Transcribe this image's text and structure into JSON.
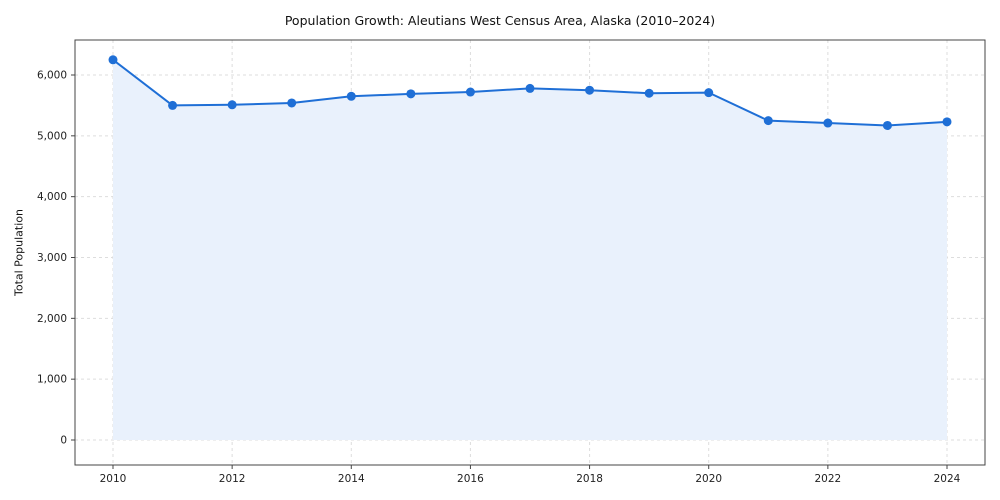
{
  "chart_data": {
    "type": "area",
    "title": "Population Growth: Aleutians West Census Area, Alaska (2010–2024)",
    "xlabel": "",
    "ylabel": "Total Population",
    "series_name": "Total Population",
    "x": [
      2010,
      2011,
      2012,
      2013,
      2014,
      2015,
      2016,
      2017,
      2018,
      2019,
      2020,
      2021,
      2022,
      2023,
      2024
    ],
    "values": [
      6250,
      5500,
      5510,
      5540,
      5650,
      5690,
      5720,
      5780,
      5750,
      5700,
      5710,
      5250,
      5210,
      5170,
      5230
    ],
    "x_ticks": [
      2010,
      2012,
      2014,
      2016,
      2018,
      2020,
      2022,
      2024
    ],
    "x_tick_labels": [
      "2010",
      "2012",
      "2014",
      "2016",
      "2018",
      "2020",
      "2022",
      "2024"
    ],
    "y_ticks": [
      0,
      1000,
      2000,
      3000,
      4000,
      5000,
      6000
    ],
    "y_tick_labels": [
      "0",
      "1,000",
      "2,000",
      "3,000",
      "4,000",
      "5,000",
      "6,000"
    ],
    "xlim": [
      2010,
      2024
    ],
    "ylim": [
      0,
      6600
    ],
    "grid": true,
    "legend": "none",
    "colors": {
      "line": "#1f6fd6",
      "marker": "#1f6fd6",
      "fill": "#e9f1fc",
      "grid": "#dddddd",
      "axis": "#444444",
      "tick_text": "#222222"
    }
  }
}
